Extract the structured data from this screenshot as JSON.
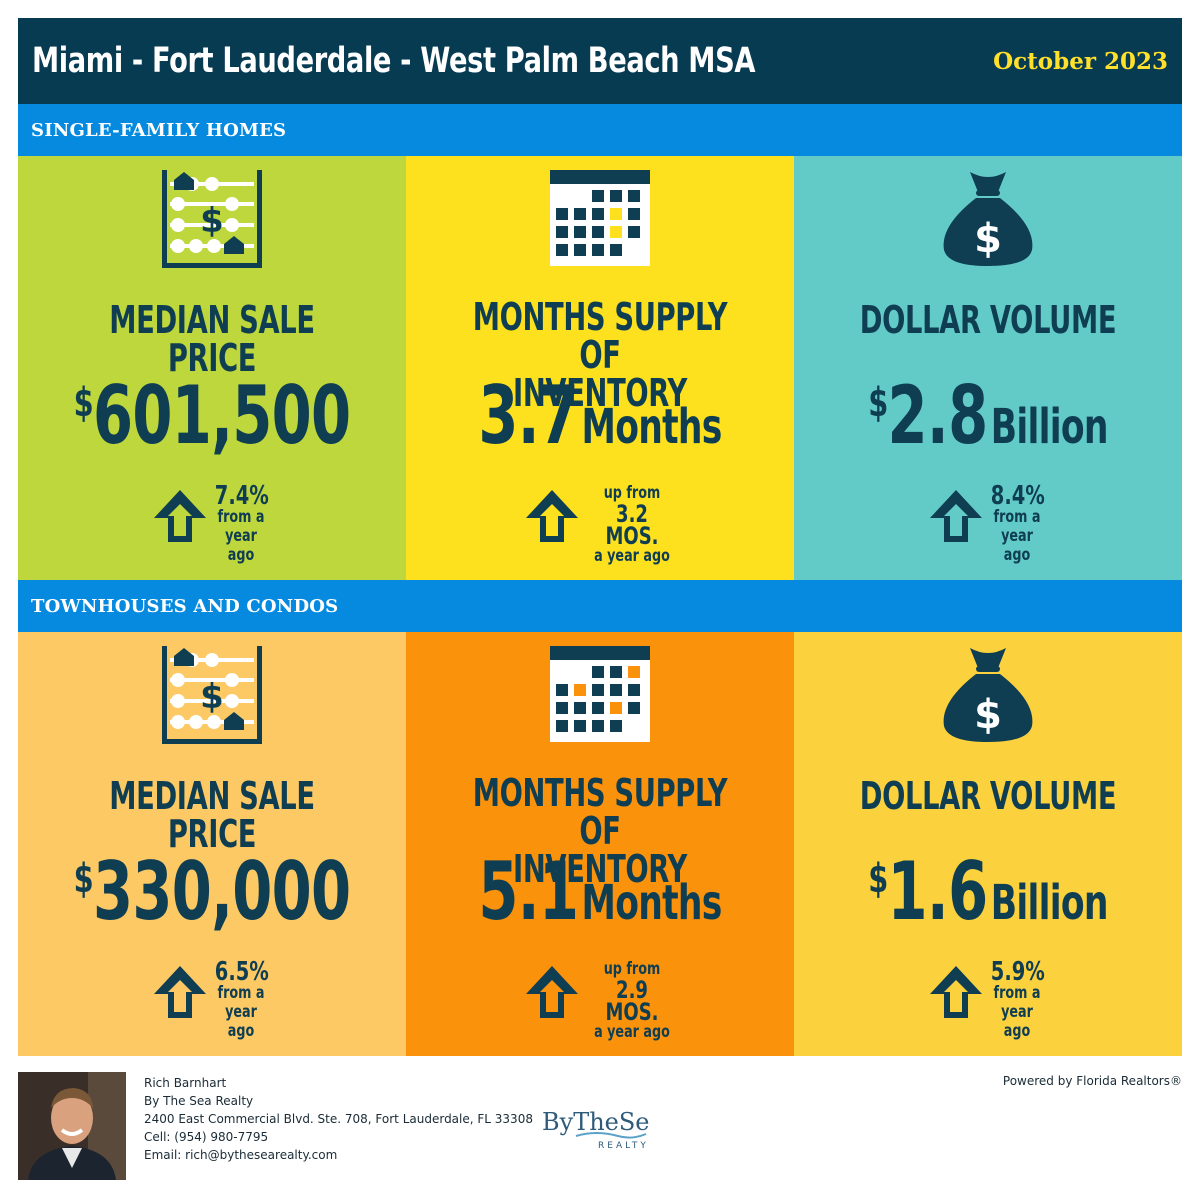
{
  "header": {
    "title": "Miami - Fort Lauderdale - West Palm Beach MSA",
    "date": "October 2023"
  },
  "colors": {
    "header_bg": "#073b52",
    "section_bar": "#068ae0",
    "date_text": "#ffe02a",
    "text_dark": "#0f3d52",
    "sf_tile_1": "#bdd73c",
    "sf_tile_2": "#fde11e",
    "sf_tile_3": "#62cbc8",
    "tc_tile_1": "#fcc964",
    "tc_tile_2": "#fb920c",
    "tc_tile_3": "#fbd13e",
    "sf_accent": "#fde11e",
    "tc_accent": "#fb920c"
  },
  "sections": [
    {
      "title": "SINGLE-FAMILY HOMES",
      "tiles": [
        {
          "icon": "abacus-icon",
          "label": "MEDIAN SALE PRICE",
          "value_prefix": "$",
          "value": "601,500",
          "value_unit": "",
          "change_pct": "7.4%",
          "change_line2": "from a",
          "change_line3": "year ago"
        },
        {
          "icon": "calendar-icon",
          "label_line1": "MONTHS SUPPLY OF",
          "label_line2": "INVENTORY",
          "value": "3.7",
          "value_unit": "Months",
          "change_line1": "up from",
          "change_value": "3.2 MOS.",
          "change_line3": "a year ago"
        },
        {
          "icon": "money-bag-icon",
          "label": "DOLLAR VOLUME",
          "value_prefix": "$",
          "value": "2.8",
          "value_unit": "Billion",
          "change_pct": "8.4%",
          "change_line2": "from a",
          "change_line3": "year ago"
        }
      ]
    },
    {
      "title": "TOWNHOUSES AND CONDOS",
      "tiles": [
        {
          "icon": "abacus-icon",
          "label": "MEDIAN SALE PRICE",
          "value_prefix": "$",
          "value": "330,000",
          "value_unit": "",
          "change_pct": "6.5%",
          "change_line2": "from a",
          "change_line3": "year ago"
        },
        {
          "icon": "calendar-icon",
          "label_line1": "MONTHS SUPPLY OF",
          "label_line2": "INVENTORY",
          "value": "5.1",
          "value_unit": "Months",
          "change_line1": "up from",
          "change_value": "2.9 MOS.",
          "change_line3": "a year ago"
        },
        {
          "icon": "money-bag-icon",
          "label": "DOLLAR VOLUME",
          "value_prefix": "$",
          "value": "1.6",
          "value_unit": "Billion",
          "change_pct": "5.9%",
          "change_line2": "from a",
          "change_line3": "year ago"
        }
      ]
    }
  ],
  "footer": {
    "name": "Rich Barnhart",
    "company": "By The Sea Realty",
    "address": "2400 East Commercial Blvd. Ste. 708, Fort Lauderdale, FL 33308",
    "cell": "Cell: (954) 980-7795",
    "email": "Email: rich@bythesearealty.com",
    "logo_text": "ByTheSea",
    "logo_sub": "REALTY",
    "powered_by": "Powered by Florida Realtors®"
  }
}
